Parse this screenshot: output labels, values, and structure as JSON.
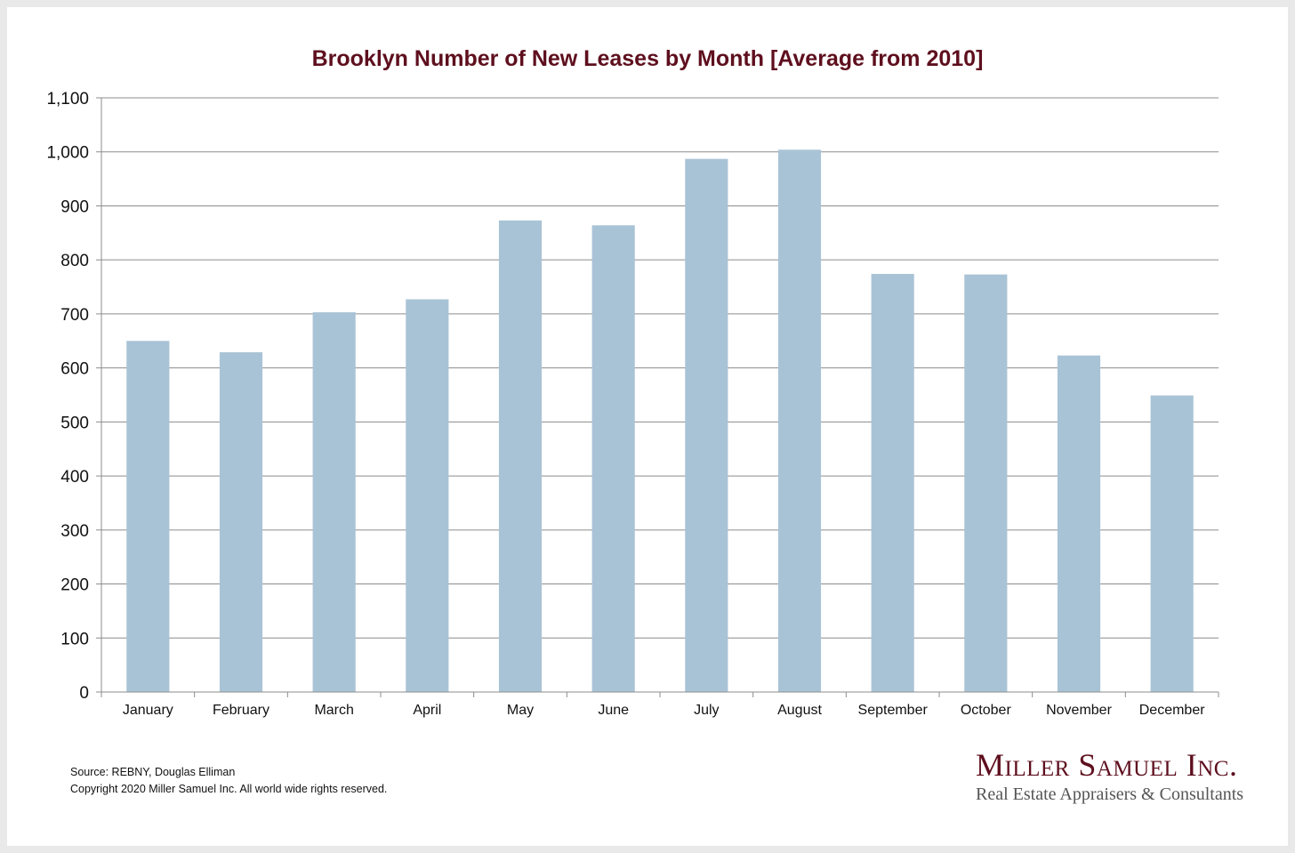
{
  "chart_data": {
    "type": "bar",
    "title": "Brooklyn Number of New Leases by Month [Average from 2010]",
    "categories": [
      "January",
      "February",
      "March",
      "April",
      "May",
      "June",
      "July",
      "August",
      "September",
      "October",
      "November",
      "December"
    ],
    "values": [
      650,
      629,
      703,
      727,
      873,
      864,
      987,
      1004,
      774,
      773,
      623,
      549
    ],
    "ylim": [
      0,
      1100
    ],
    "yticks": [
      "0",
      "100",
      "200",
      "300",
      "400",
      "500",
      "600",
      "700",
      "800",
      "900",
      "1,000",
      "1,100"
    ],
    "grid": true,
    "bar_color": "#a9c3d6"
  },
  "footer": {
    "source": "Source: REBNY, Douglas Elliman",
    "copyright": "Copyright 2020 Miller Samuel Inc.  All world wide rights reserved."
  },
  "logo": {
    "name": "Miller Samuel Inc.",
    "tagline": "Real Estate Appraisers & Consultants"
  },
  "colors": {
    "title": "#5e0f1e",
    "grid": "#8c8c8c"
  }
}
